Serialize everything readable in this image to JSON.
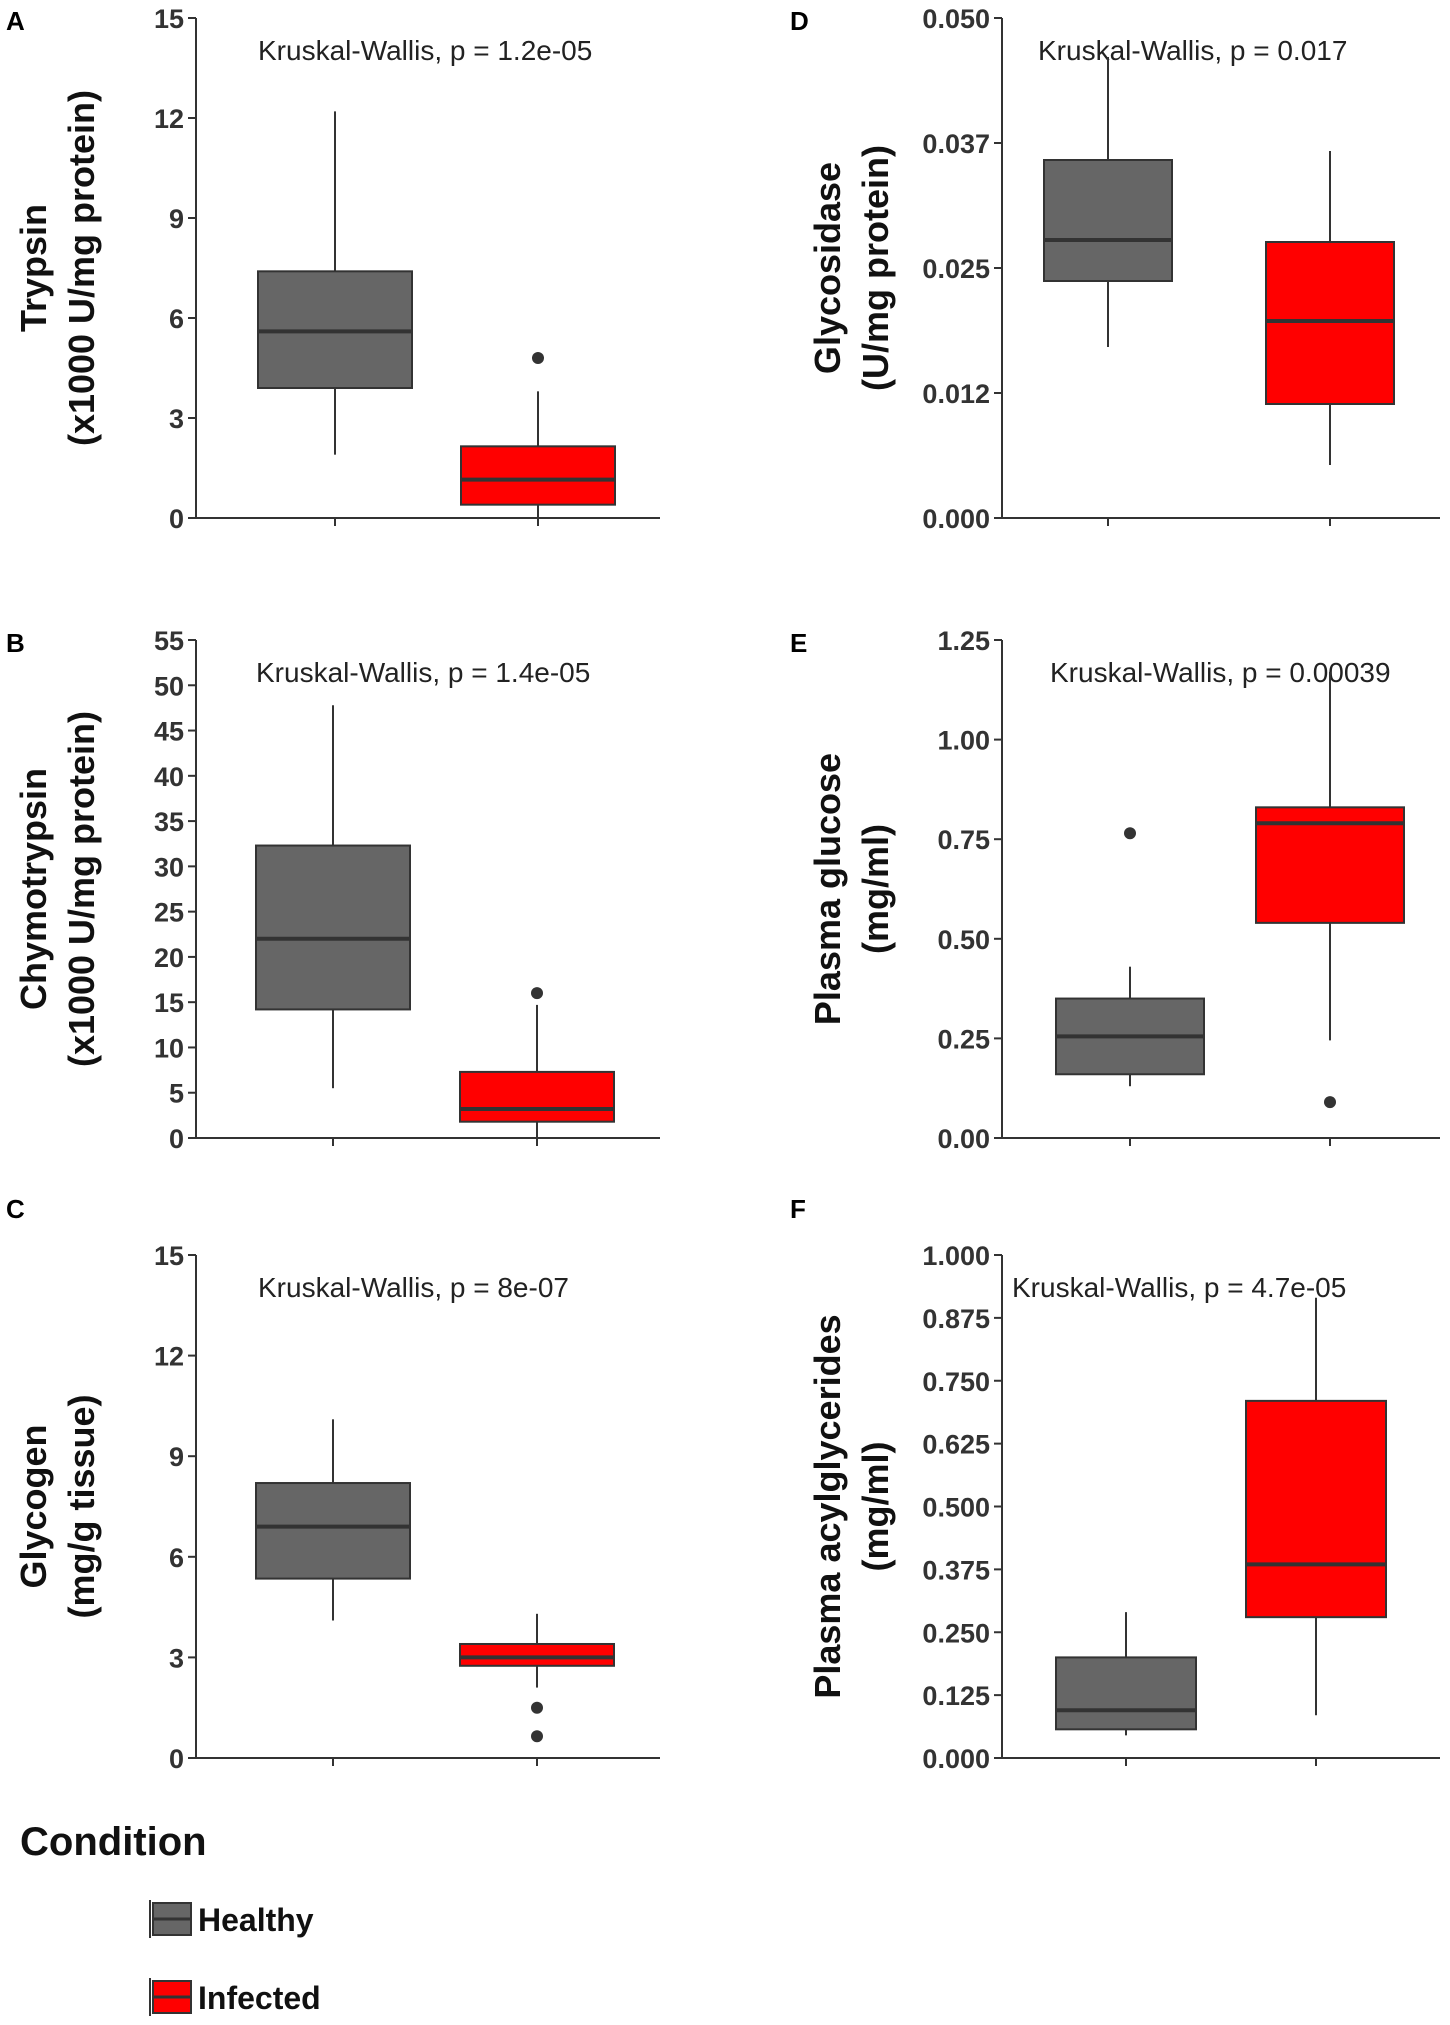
{
  "colors": {
    "healthy": "#666666",
    "infected": "#ff0000",
    "outline": "#333333",
    "axis": "#333333"
  },
  "legend": {
    "title": "Condition",
    "items": [
      {
        "label": "Healthy",
        "color": "#666666"
      },
      {
        "label": "Infected",
        "color": "#ff0000"
      }
    ]
  },
  "chart_data": [
    {
      "panel": "A",
      "type": "box",
      "ylabel": [
        "Trypsin",
        "(x1000 U/mg protein)"
      ],
      "annotation": "Kruskal-Wallis, p = 1.2e-05",
      "ylim": [
        0,
        15
      ],
      "ticks": [
        0,
        3,
        6,
        9,
        12,
        15
      ],
      "tick_labels": [
        "0",
        "3",
        "6",
        "9",
        "12",
        "15"
      ],
      "groups": [
        {
          "name": "Healthy",
          "min": 1.9,
          "q1": 3.9,
          "median": 5.6,
          "q3": 7.4,
          "max": 12.2,
          "outliers": []
        },
        {
          "name": "Infected",
          "min": 0.0,
          "q1": 0.4,
          "median": 1.15,
          "q3": 2.15,
          "max": 3.8,
          "outliers": [
            4.8
          ]
        }
      ]
    },
    {
      "panel": "B",
      "type": "box",
      "ylabel": [
        "Chymotrypsin",
        "(x1000 U/mg protein)"
      ],
      "annotation": "Kruskal-Wallis, p = 1.4e-05",
      "ylim": [
        0,
        55
      ],
      "ticks": [
        0,
        5,
        10,
        15,
        20,
        25,
        30,
        35,
        40,
        45,
        50,
        55
      ],
      "tick_labels": [
        "0",
        "5",
        "10",
        "15",
        "20",
        "25",
        "30",
        "35",
        "40",
        "45",
        "50",
        "55"
      ],
      "groups": [
        {
          "name": "Healthy",
          "min": 5.5,
          "q1": 14.2,
          "median": 22.0,
          "q3": 32.3,
          "max": 47.8,
          "outliers": []
        },
        {
          "name": "Infected",
          "min": 0.0,
          "q1": 1.8,
          "median": 3.2,
          "q3": 7.3,
          "max": 14.7,
          "outliers": [
            16.0
          ]
        }
      ]
    },
    {
      "panel": "C",
      "type": "box",
      "ylabel": [
        "Glycogen",
        "(mg/g tissue)"
      ],
      "annotation": "Kruskal-Wallis, p = 8e-07",
      "ylim": [
        0,
        15
      ],
      "ticks": [
        0,
        3,
        6,
        9,
        12,
        15
      ],
      "tick_labels": [
        "0",
        "3",
        "6",
        "9",
        "12",
        "15"
      ],
      "groups": [
        {
          "name": "Healthy",
          "min": 4.1,
          "q1": 5.35,
          "median": 6.9,
          "q3": 8.2,
          "max": 10.1,
          "outliers": []
        },
        {
          "name": "Infected",
          "min": 2.1,
          "q1": 2.75,
          "median": 3.0,
          "q3": 3.4,
          "max": 4.3,
          "outliers": [
            1.5,
            0.65
          ]
        }
      ]
    },
    {
      "panel": "D",
      "type": "box",
      "ylabel": [
        "Glycosidase",
        "(U/mg protein)"
      ],
      "annotation": "Kruskal-Wallis, p = 0.017",
      "ylim": [
        0,
        0.05
      ],
      "ticks": [
        0,
        0.0125,
        0.025,
        0.0375,
        0.05
      ],
      "tick_labels": [
        "0.000",
        "0.012",
        "0.025",
        "0.037",
        "0.050"
      ],
      "groups": [
        {
          "name": "Healthy",
          "min": 0.0171,
          "q1": 0.0237,
          "median": 0.0278,
          "q3": 0.0358,
          "max": 0.0461,
          "outliers": []
        },
        {
          "name": "Infected",
          "min": 0.0053,
          "q1": 0.0114,
          "median": 0.0197,
          "q3": 0.0276,
          "max": 0.0367,
          "outliers": []
        }
      ]
    },
    {
      "panel": "E",
      "type": "box",
      "ylabel": [
        "Plasma glucose",
        "(mg/ml)"
      ],
      "annotation": "Kruskal-Wallis, p = 0.00039",
      "ylim": [
        0,
        1.25
      ],
      "ticks": [
        0,
        0.25,
        0.5,
        0.75,
        1.0,
        1.25
      ],
      "tick_labels": [
        "0.00",
        "0.25",
        "0.50",
        "0.75",
        "1.00",
        "1.25"
      ],
      "groups": [
        {
          "name": "Healthy",
          "min": 0.13,
          "q1": 0.16,
          "median": 0.255,
          "q3": 0.35,
          "max": 0.43,
          "outliers": [
            0.765
          ]
        },
        {
          "name": "Infected",
          "min": 0.245,
          "q1": 0.54,
          "median": 0.79,
          "q3": 0.83,
          "max": 1.17,
          "outliers": [
            0.09
          ]
        }
      ]
    },
    {
      "panel": "F",
      "type": "box",
      "ylabel": [
        "Plasma acylglycerides",
        "(mg/ml)"
      ],
      "annotation": "Kruskal-Wallis, p = 4.7e-05",
      "ylim": [
        0,
        1.0
      ],
      "ticks": [
        0,
        0.125,
        0.25,
        0.375,
        0.5,
        0.625,
        0.75,
        0.875,
        1.0
      ],
      "tick_labels": [
        "0.000",
        "0.125",
        "0.250",
        "0.375",
        "0.500",
        "0.625",
        "0.750",
        "0.875",
        "1.000"
      ],
      "groups": [
        {
          "name": "Healthy",
          "min": 0.045,
          "q1": 0.057,
          "median": 0.095,
          "q3": 0.2,
          "max": 0.29,
          "outliers": []
        },
        {
          "name": "Infected",
          "min": 0.085,
          "q1": 0.28,
          "median": 0.385,
          "q3": 0.71,
          "max": 0.915,
          "outliers": []
        }
      ]
    }
  ]
}
